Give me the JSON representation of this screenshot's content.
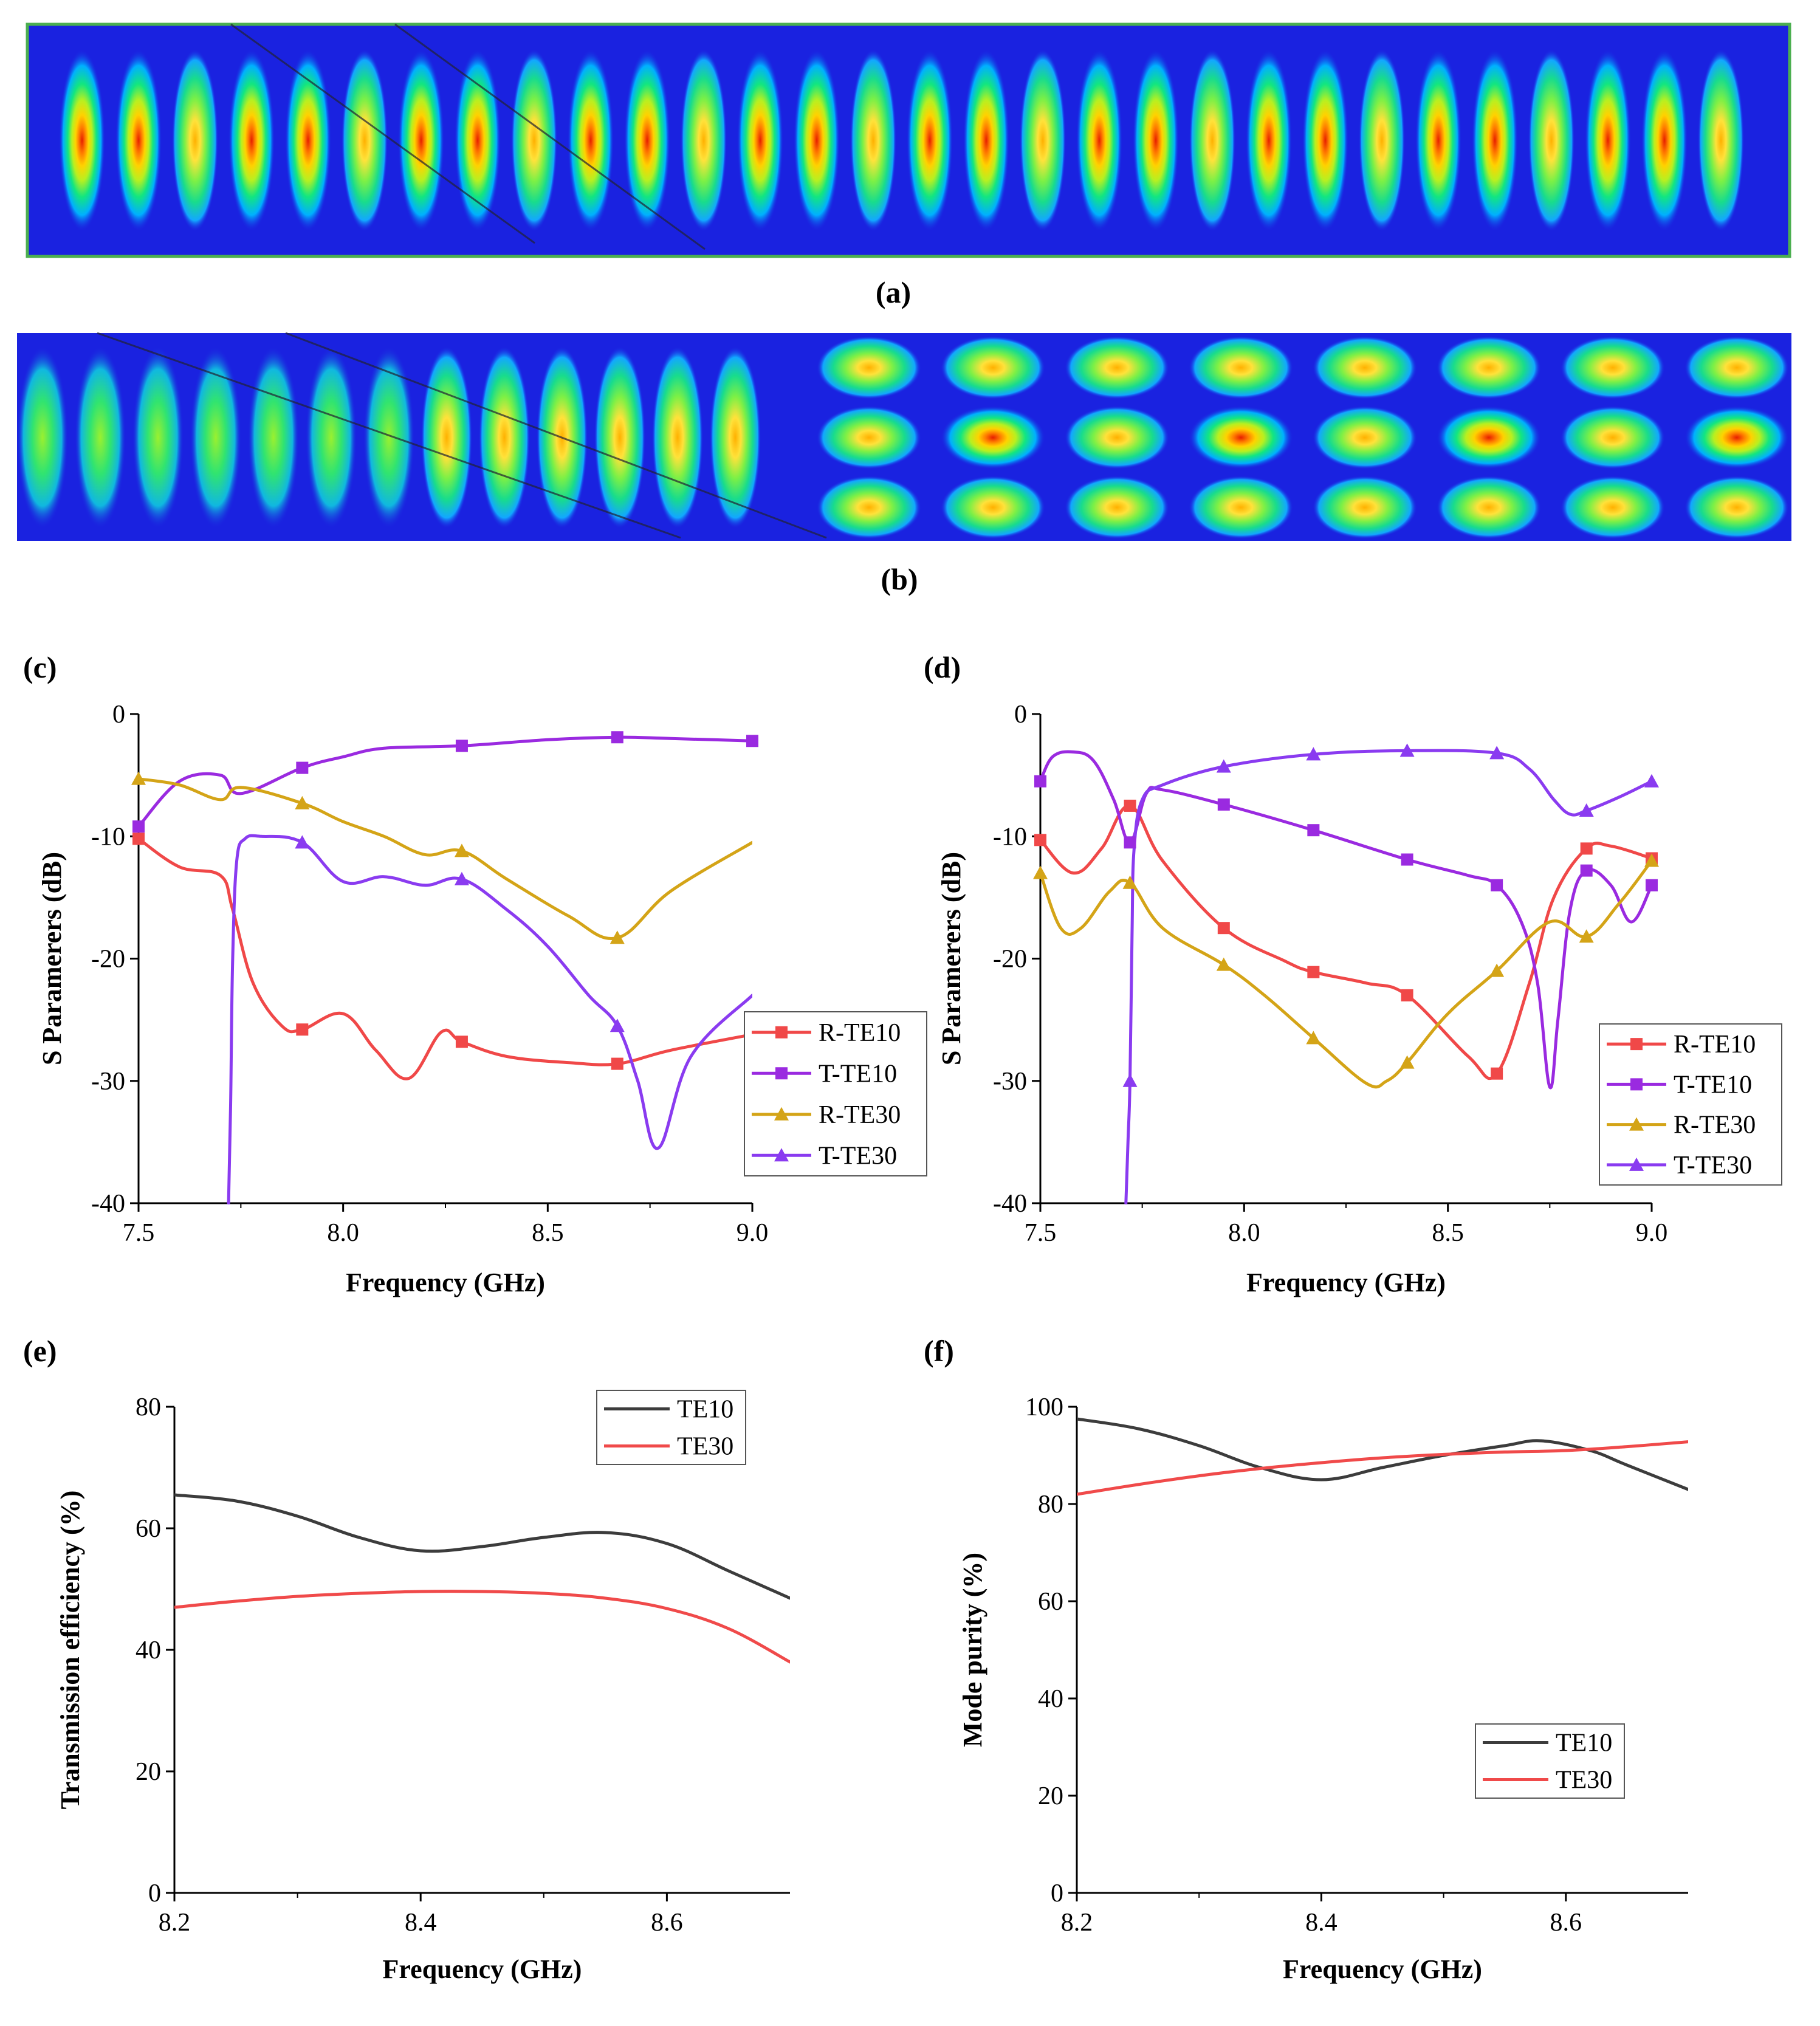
{
  "panels": {
    "a": {
      "label": "(a)"
    },
    "b": {
      "label": "(b)"
    },
    "c": {
      "label": "(c)"
    },
    "d": {
      "label": "(d)"
    },
    "e": {
      "label": "(e)"
    },
    "f": {
      "label": "(f)"
    }
  },
  "field_colors": [
    "#1a22e0",
    "#00b0ff",
    "#12e680",
    "#b8f020",
    "#ffd200",
    "#ff7a00",
    "#e61e00"
  ],
  "series_colors": {
    "R-TE10": "#f04848",
    "T-TE10": "#9a2ae0",
    "R-TE30": "#d4a417",
    "T-TE30": "#8a3bf0",
    "TE10": "#3c3c3c",
    "TE30": "#f04a4a"
  },
  "chart_data": [
    {
      "panel": "c",
      "type": "line",
      "xlabel": "Frequency (GHz)",
      "ylabel": "S Paramerers (dB)",
      "xlim": [
        7.5,
        9.0
      ],
      "ylim": [
        -40,
        0
      ],
      "xticks": [
        "7.5",
        "8.0",
        "8.5",
        "9.0"
      ],
      "yticks": [
        "0",
        "-10",
        "-20",
        "-30",
        "-40"
      ],
      "legend_position": "bottom-right",
      "series": [
        {
          "name": "R-TE10",
          "marker": "square",
          "x": [
            7.5,
            7.6,
            7.7,
            7.73,
            7.78,
            7.85,
            7.9,
            8.0,
            8.08,
            8.16,
            8.24,
            8.29,
            8.4,
            8.55,
            8.67,
            8.8,
            9.0
          ],
          "y": [
            -10.2,
            -12.5,
            -13.2,
            -16,
            -22,
            -25.5,
            -25.8,
            -24.5,
            -27.5,
            -29.8,
            -26,
            -26.8,
            -28,
            -28.5,
            -28.6,
            -27.5,
            -26.2
          ],
          "markers": [
            [
              7.5,
              -10.2
            ],
            [
              7.9,
              -25.8
            ],
            [
              8.29,
              -26.8
            ],
            [
              8.67,
              -28.6
            ]
          ]
        },
        {
          "name": "T-TE10",
          "marker": "square",
          "x": [
            7.5,
            7.6,
            7.7,
            7.75,
            7.9,
            8.0,
            8.1,
            8.29,
            8.5,
            8.67,
            8.8,
            9.0
          ],
          "y": [
            -9.2,
            -5.5,
            -5.0,
            -6.5,
            -4.4,
            -3.5,
            -2.8,
            -2.6,
            -2.1,
            -1.9,
            -2.0,
            -2.2
          ],
          "markers": [
            [
              7.5,
              -9.2
            ],
            [
              7.9,
              -4.4
            ],
            [
              8.29,
              -2.6
            ],
            [
              8.67,
              -1.9
            ],
            [
              9.0,
              -2.2
            ]
          ]
        },
        {
          "name": "R-TE30",
          "marker": "triangle",
          "x": [
            7.5,
            7.6,
            7.7,
            7.75,
            7.9,
            8.0,
            8.1,
            8.2,
            8.29,
            8.4,
            8.55,
            8.67,
            8.8,
            9.0
          ],
          "y": [
            -5.3,
            -5.8,
            -7.0,
            -6.0,
            -7.3,
            -8.8,
            -10.0,
            -11.5,
            -11.2,
            -13.5,
            -16.5,
            -18.3,
            -14.5,
            -10.5
          ],
          "markers": [
            [
              7.5,
              -5.3
            ],
            [
              7.9,
              -7.3
            ],
            [
              8.29,
              -11.2
            ],
            [
              8.67,
              -18.3
            ]
          ]
        },
        {
          "name": "T-TE30",
          "marker": "triangle",
          "x": [
            7.72,
            7.725,
            7.73,
            7.74,
            7.76,
            7.8,
            7.9,
            8.0,
            8.1,
            8.2,
            8.29,
            8.4,
            8.5,
            8.6,
            8.67,
            8.72,
            8.77,
            8.85,
            9.0
          ],
          "y": [
            -40,
            -32,
            -20,
            -12,
            -10.2,
            -10.0,
            -10.5,
            -13.7,
            -13.3,
            -14.0,
            -13.5,
            -16,
            -19,
            -23,
            -25.5,
            -30,
            -35.5,
            -28,
            -23
          ],
          "markers": [
            [
              7.9,
              -10.5
            ],
            [
              8.29,
              -13.5
            ],
            [
              8.67,
              -25.5
            ]
          ]
        }
      ]
    },
    {
      "panel": "d",
      "type": "line",
      "xlabel": "Frequency (GHz)",
      "ylabel": "S Paramerers (dB)",
      "xlim": [
        7.5,
        9.0
      ],
      "ylim": [
        -40,
        0
      ],
      "xticks": [
        "7.5",
        "8.0",
        "8.5",
        "9.0"
      ],
      "yticks": [
        "0",
        "-10",
        "-20",
        "-30",
        "-40"
      ],
      "legend_position": "bottom-right",
      "series": [
        {
          "name": "R-TE10",
          "marker": "square",
          "x": [
            7.5,
            7.58,
            7.65,
            7.72,
            7.8,
            7.95,
            8.1,
            8.17,
            8.3,
            8.4,
            8.55,
            8.62,
            8.7,
            8.76,
            8.84,
            8.9,
            9.0
          ],
          "y": [
            -10.3,
            -13.0,
            -11.0,
            -7.5,
            -12.0,
            -17.5,
            -20.2,
            -21.1,
            -22.0,
            -23.0,
            -28.0,
            -29.4,
            -22.0,
            -15.0,
            -11.0,
            -10.8,
            -11.8
          ],
          "markers": [
            [
              7.5,
              -10.3
            ],
            [
              7.72,
              -7.5
            ],
            [
              7.95,
              -17.5
            ],
            [
              8.17,
              -21.1
            ],
            [
              8.4,
              -23.0
            ],
            [
              8.62,
              -29.4
            ],
            [
              8.84,
              -11.0
            ],
            [
              9.0,
              -11.8
            ]
          ]
        },
        {
          "name": "T-TE10",
          "marker": "square",
          "x": [
            7.5,
            7.53,
            7.58,
            7.63,
            7.68,
            7.72,
            7.76,
            7.8,
            7.95,
            8.17,
            8.4,
            8.55,
            8.62,
            8.68,
            8.72,
            8.75,
            8.77,
            8.8,
            8.84,
            8.9,
            8.95,
            9.0
          ],
          "y": [
            -5.5,
            -3.5,
            -3.1,
            -3.8,
            -7.0,
            -10.5,
            -6.5,
            -6.2,
            -7.4,
            -9.5,
            -11.9,
            -13.2,
            -14.0,
            -17.0,
            -22.0,
            -30.5,
            -25.0,
            -16.0,
            -12.8,
            -14.0,
            -17.0,
            -14.0
          ],
          "markers": [
            [
              7.5,
              -5.5
            ],
            [
              7.72,
              -10.5
            ],
            [
              7.95,
              -7.4
            ],
            [
              8.17,
              -9.5
            ],
            [
              8.4,
              -11.9
            ],
            [
              8.62,
              -14.0
            ],
            [
              8.84,
              -12.8
            ],
            [
              9.0,
              -14.0
            ]
          ]
        },
        {
          "name": "R-TE30",
          "marker": "triangle",
          "x": [
            7.5,
            7.55,
            7.6,
            7.67,
            7.72,
            7.8,
            7.95,
            8.05,
            8.17,
            8.3,
            8.35,
            8.4,
            8.5,
            8.62,
            8.75,
            8.84,
            8.92,
            9.0
          ],
          "y": [
            -13.0,
            -17.5,
            -17.5,
            -14.5,
            -13.8,
            -17.5,
            -20.5,
            -23.0,
            -26.5,
            -30.2,
            -30.0,
            -28.5,
            -24.5,
            -21.0,
            -17.0,
            -18.2,
            -15.5,
            -12.0
          ],
          "markers": [
            [
              7.5,
              -13.0
            ],
            [
              7.72,
              -13.8
            ],
            [
              7.95,
              -20.5
            ],
            [
              8.17,
              -26.5
            ],
            [
              8.4,
              -28.5
            ],
            [
              8.62,
              -21.0
            ],
            [
              8.84,
              -18.2
            ],
            [
              9.0,
              -12.0
            ]
          ]
        },
        {
          "name": "T-TE30",
          "marker": "triangle",
          "x": [
            7.71,
            7.715,
            7.72,
            7.725,
            7.73,
            7.75,
            7.8,
            7.95,
            8.17,
            8.4,
            8.62,
            8.7,
            8.76,
            8.8,
            8.84,
            8.92,
            9.0
          ],
          "y": [
            -40.0,
            -35.0,
            -30.0,
            -18.0,
            -11.0,
            -7.0,
            -5.8,
            -4.3,
            -3.3,
            -3.0,
            -3.2,
            -4.5,
            -7.0,
            -8.2,
            -7.9,
            -6.8,
            -5.5
          ],
          "markers": [
            [
              7.72,
              -30.0
            ],
            [
              7.95,
              -4.3
            ],
            [
              8.17,
              -3.3
            ],
            [
              8.4,
              -3.0
            ],
            [
              8.62,
              -3.2
            ],
            [
              8.84,
              -7.9
            ],
            [
              9.0,
              -5.5
            ]
          ]
        }
      ]
    },
    {
      "panel": "e",
      "type": "line",
      "xlabel": "Frequency (GHz)",
      "ylabel": "Transmission efficiency (%)",
      "xlim": [
        8.2,
        8.7
      ],
      "ylim": [
        0,
        80
      ],
      "xticks": [
        "8.2",
        "8.4",
        "8.6"
      ],
      "yticks": [
        "0",
        "20",
        "40",
        "60",
        "80"
      ],
      "legend_position": "top-right",
      "series": [
        {
          "name": "TE10",
          "x": [
            8.2,
            8.25,
            8.3,
            8.35,
            8.4,
            8.45,
            8.5,
            8.55,
            8.6,
            8.65,
            8.7
          ],
          "y": [
            65.5,
            64.5,
            62.0,
            58.5,
            56.3,
            57.0,
            58.5,
            59.3,
            57.5,
            53.0,
            48.5
          ]
        },
        {
          "name": "TE30",
          "x": [
            8.2,
            8.25,
            8.3,
            8.35,
            8.4,
            8.45,
            8.5,
            8.55,
            8.6,
            8.65,
            8.7
          ],
          "y": [
            47.0,
            48.0,
            48.8,
            49.3,
            49.6,
            49.6,
            49.3,
            48.5,
            46.8,
            43.5,
            38.0
          ]
        }
      ]
    },
    {
      "panel": "f",
      "type": "line",
      "xlabel": "Frequency (GHz)",
      "ylabel": "Mode purity (%)",
      "xlim": [
        8.2,
        8.7
      ],
      "ylim": [
        0,
        100
      ],
      "xticks": [
        "8.2",
        "8.4",
        "8.6"
      ],
      "yticks": [
        "0",
        "20",
        "40",
        "60",
        "80",
        "100"
      ],
      "legend_position": "lower-right",
      "series": [
        {
          "name": "TE10",
          "x": [
            8.2,
            8.25,
            8.3,
            8.35,
            8.4,
            8.45,
            8.5,
            8.55,
            8.58,
            8.62,
            8.65,
            8.7
          ],
          "y": [
            97.5,
            95.5,
            92.0,
            87.5,
            85.0,
            87.5,
            90.0,
            92.0,
            93.0,
            91.0,
            88.0,
            83.0
          ]
        },
        {
          "name": "TE30",
          "x": [
            8.2,
            8.25,
            8.3,
            8.35,
            8.4,
            8.45,
            8.5,
            8.55,
            8.6,
            8.65,
            8.7
          ],
          "y": [
            82.0,
            84.0,
            85.8,
            87.3,
            88.5,
            89.5,
            90.2,
            90.7,
            91.0,
            91.8,
            92.8
          ]
        }
      ]
    }
  ]
}
